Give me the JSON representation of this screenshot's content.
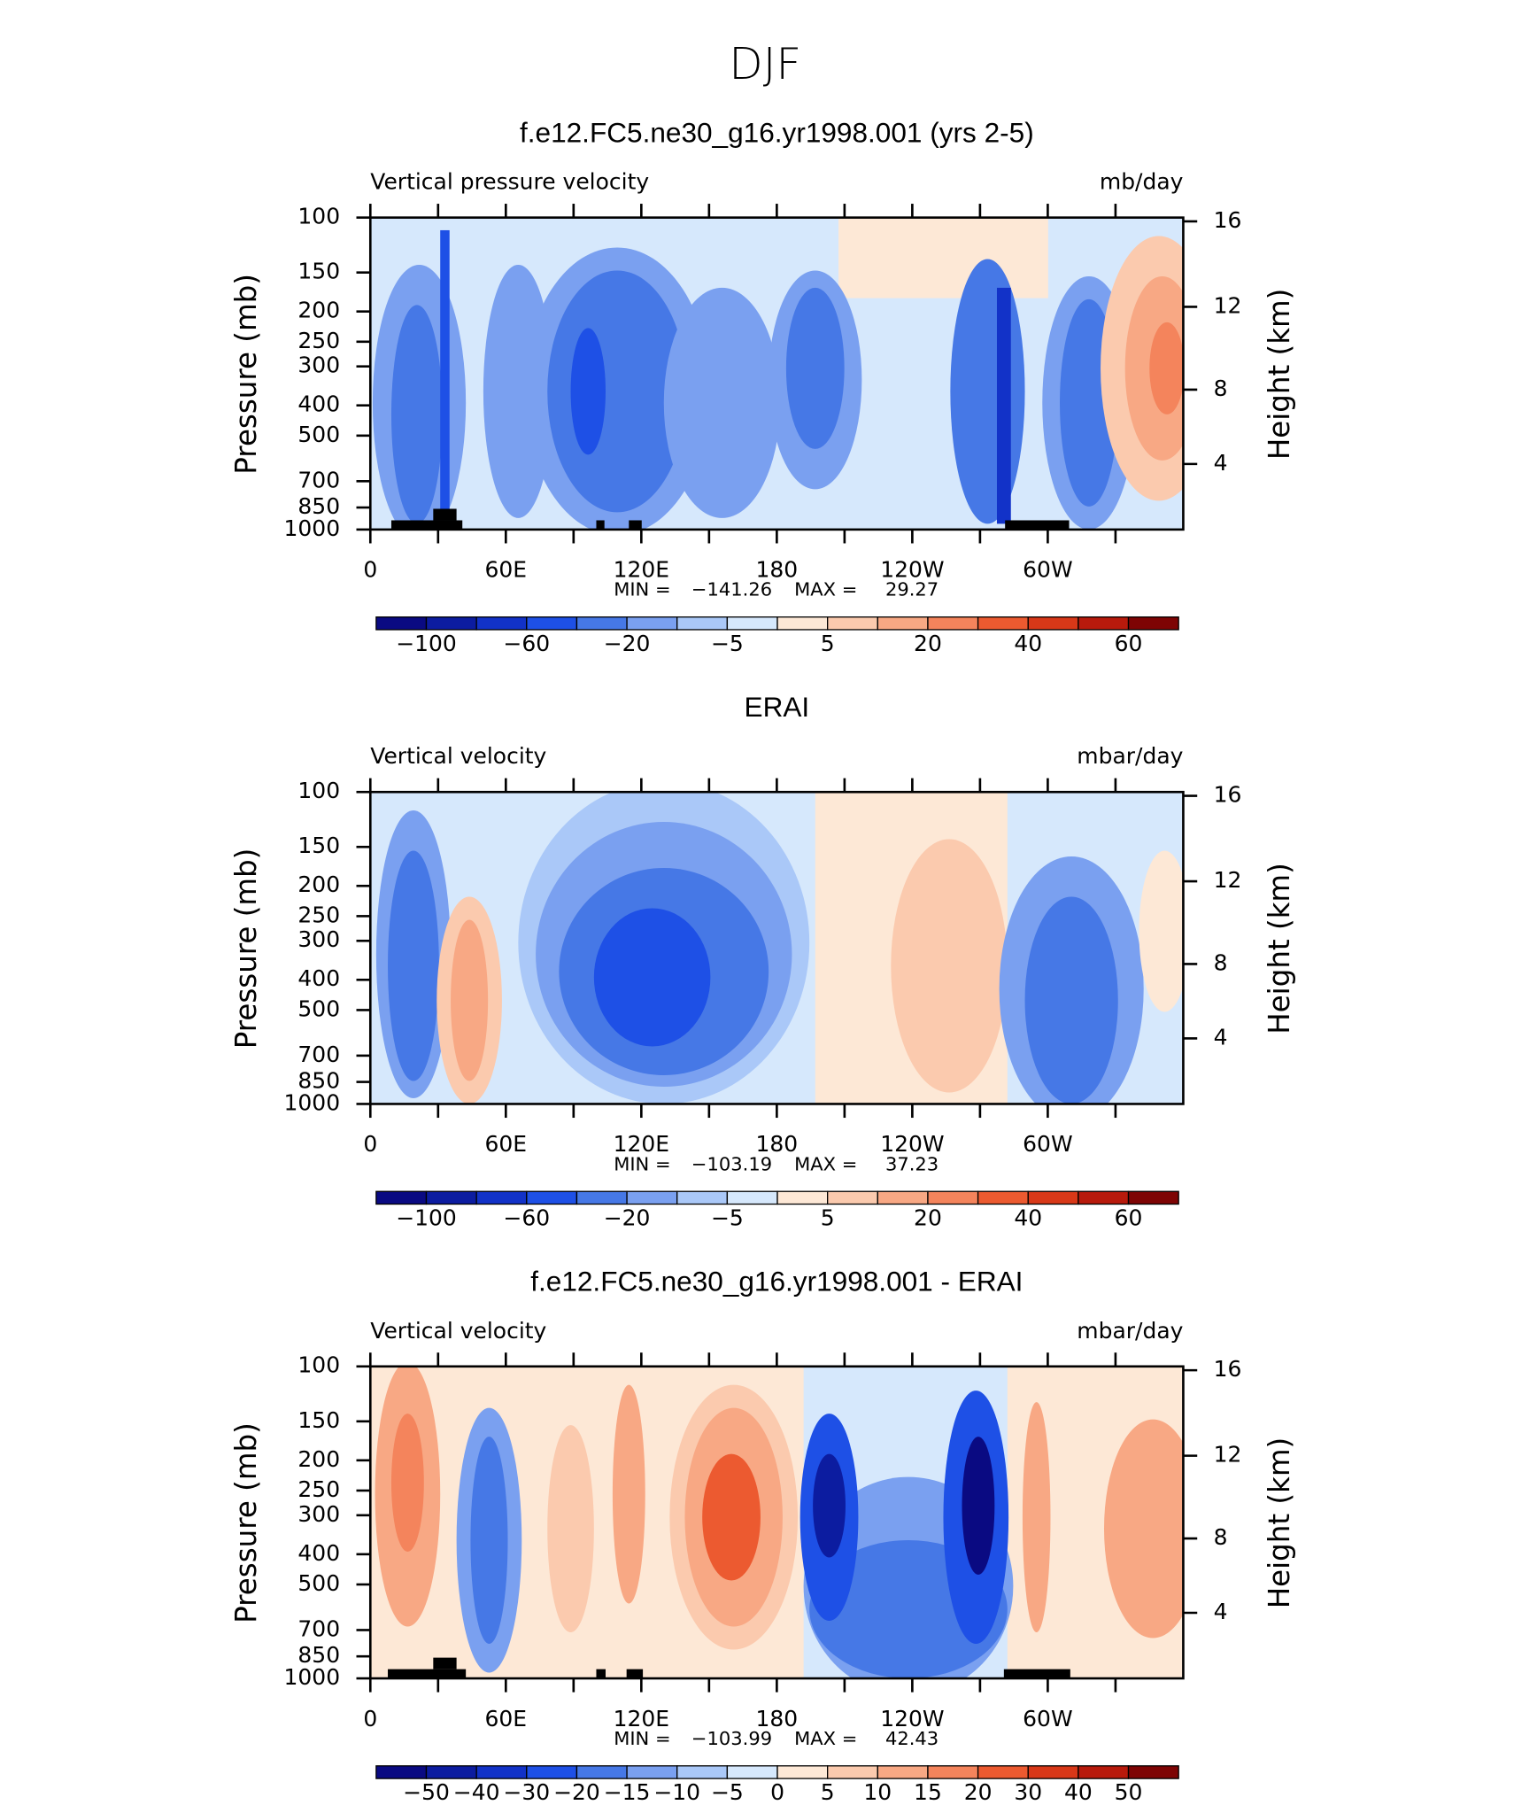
{
  "title": "DJF",
  "chart_data": [
    {
      "type": "contour",
      "title": "f.e12.FC5.ne30_g16.yr1998.001 (yrs 2-5)",
      "left_string": "Vertical pressure velocity",
      "right_string": "mb/day",
      "ylabel": "Pressure (mb)",
      "y2label": "Height (km)",
      "xlim": [
        0,
        360
      ],
      "xticks": [
        0,
        {
          "value": 60,
          "label": "60E"
        },
        {
          "value": 120,
          "label": "120E"
        },
        180,
        {
          "value": 240,
          "label": "120W"
        },
        {
          "value": 300,
          "label": "60W"
        }
      ],
      "xminorticks": [
        30,
        90,
        150,
        210,
        270,
        330
      ],
      "ylim": [
        1000,
        100
      ],
      "ylog": true,
      "yticks": [
        100,
        150,
        200,
        250,
        300,
        400,
        500,
        700,
        850,
        1000
      ],
      "y2ticks": [
        4,
        8,
        12,
        16
      ],
      "min_label": "MIN =",
      "min": {
        "value": -141.26,
        "label": "−141.26"
      },
      "max_label": "MAX =",
      "max": 29.27,
      "colorbar": {
        "colors": [
          "#0a0a82",
          "#0c1ca0",
          "#1232c8",
          "#1e50e6",
          "#4678e6",
          "#7aa0f0",
          "#aac8f8",
          "#d6e8fc",
          "#fde8d6",
          "#fbcaae",
          "#f8a884",
          "#f4845c",
          "#ec5a30",
          "#d83818",
          "#b81a0c",
          "#7e0404"
        ],
        "ticks": [
          {
            "value": -100,
            "label": "−100"
          },
          {
            "value": -60,
            "label": "−60"
          },
          {
            "value": -20,
            "label": "−20"
          },
          {
            "value": -5,
            "label": "−5"
          },
          5,
          20,
          40,
          60
        ]
      }
    },
    {
      "type": "contour",
      "title": "ERAI",
      "left_string": "Vertical velocity",
      "right_string": "mbar/day",
      "ylabel": "Pressure (mb)",
      "y2label": "Height (km)",
      "xlim": [
        0,
        360
      ],
      "xticks": [
        0,
        {
          "value": 60,
          "label": "60E"
        },
        {
          "value": 120,
          "label": "120E"
        },
        180,
        {
          "value": 240,
          "label": "120W"
        },
        {
          "value": 300,
          "label": "60W"
        }
      ],
      "xminorticks": [
        30,
        90,
        150,
        210,
        270,
        330
      ],
      "ylim": [
        1000,
        100
      ],
      "ylog": true,
      "yticks": [
        100,
        150,
        200,
        250,
        300,
        400,
        500,
        700,
        850,
        1000
      ],
      "y2ticks": [
        4,
        8,
        12,
        16
      ],
      "min_label": "MIN =",
      "min": {
        "value": -103.19,
        "label": "−103.19"
      },
      "max_label": "MAX =",
      "max": 37.23,
      "colorbar": {
        "colors": [
          "#0a0a82",
          "#0c1ca0",
          "#1232c8",
          "#1e50e6",
          "#4678e6",
          "#7aa0f0",
          "#aac8f8",
          "#d6e8fc",
          "#fde8d6",
          "#fbcaae",
          "#f8a884",
          "#f4845c",
          "#ec5a30",
          "#d83818",
          "#b81a0c",
          "#7e0404"
        ],
        "ticks": [
          {
            "value": -100,
            "label": "−100"
          },
          {
            "value": -60,
            "label": "−60"
          },
          {
            "value": -20,
            "label": "−20"
          },
          {
            "value": -5,
            "label": "−5"
          },
          5,
          20,
          40,
          60
        ]
      }
    },
    {
      "type": "contour",
      "title": "f.e12.FC5.ne30_g16.yr1998.001 - ERAI",
      "left_string": "Vertical velocity",
      "right_string": "mbar/day",
      "ylabel": "Pressure (mb)",
      "y2label": "Height (km)",
      "xlim": [
        0,
        360
      ],
      "xticks": [
        0,
        {
          "value": 60,
          "label": "60E"
        },
        {
          "value": 120,
          "label": "120E"
        },
        180,
        {
          "value": 240,
          "label": "120W"
        },
        {
          "value": 300,
          "label": "60W"
        }
      ],
      "xminorticks": [
        30,
        90,
        150,
        210,
        270,
        330
      ],
      "ylim": [
        1000,
        100
      ],
      "ylog": true,
      "yticks": [
        100,
        150,
        200,
        250,
        300,
        400,
        500,
        700,
        850,
        1000
      ],
      "y2ticks": [
        4,
        8,
        12,
        16
      ],
      "min_label": "MIN =",
      "min": {
        "value": -103.99,
        "label": "−103.99"
      },
      "max_label": "MAX =",
      "max": 42.43,
      "colorbar": {
        "colors": [
          "#0a0a82",
          "#0c1ca0",
          "#1232c8",
          "#1e50e6",
          "#4678e6",
          "#7aa0f0",
          "#aac8f8",
          "#d6e8fc",
          "#fde8d6",
          "#fbcaae",
          "#f8a884",
          "#f4845c",
          "#ec5a30",
          "#d83818",
          "#b81a0c",
          "#7e0404"
        ],
        "ticks": [
          {
            "value": -50,
            "label": "−50"
          },
          {
            "value": -40,
            "label": "−40"
          },
          {
            "value": -30,
            "label": "−30"
          },
          {
            "value": -20,
            "label": "−20"
          },
          {
            "value": -15,
            "label": "−15"
          },
          {
            "value": -10,
            "label": "−10"
          },
          {
            "value": -5,
            "label": "−5"
          },
          0,
          5,
          10,
          15,
          20,
          30,
          40,
          50
        ]
      }
    }
  ]
}
